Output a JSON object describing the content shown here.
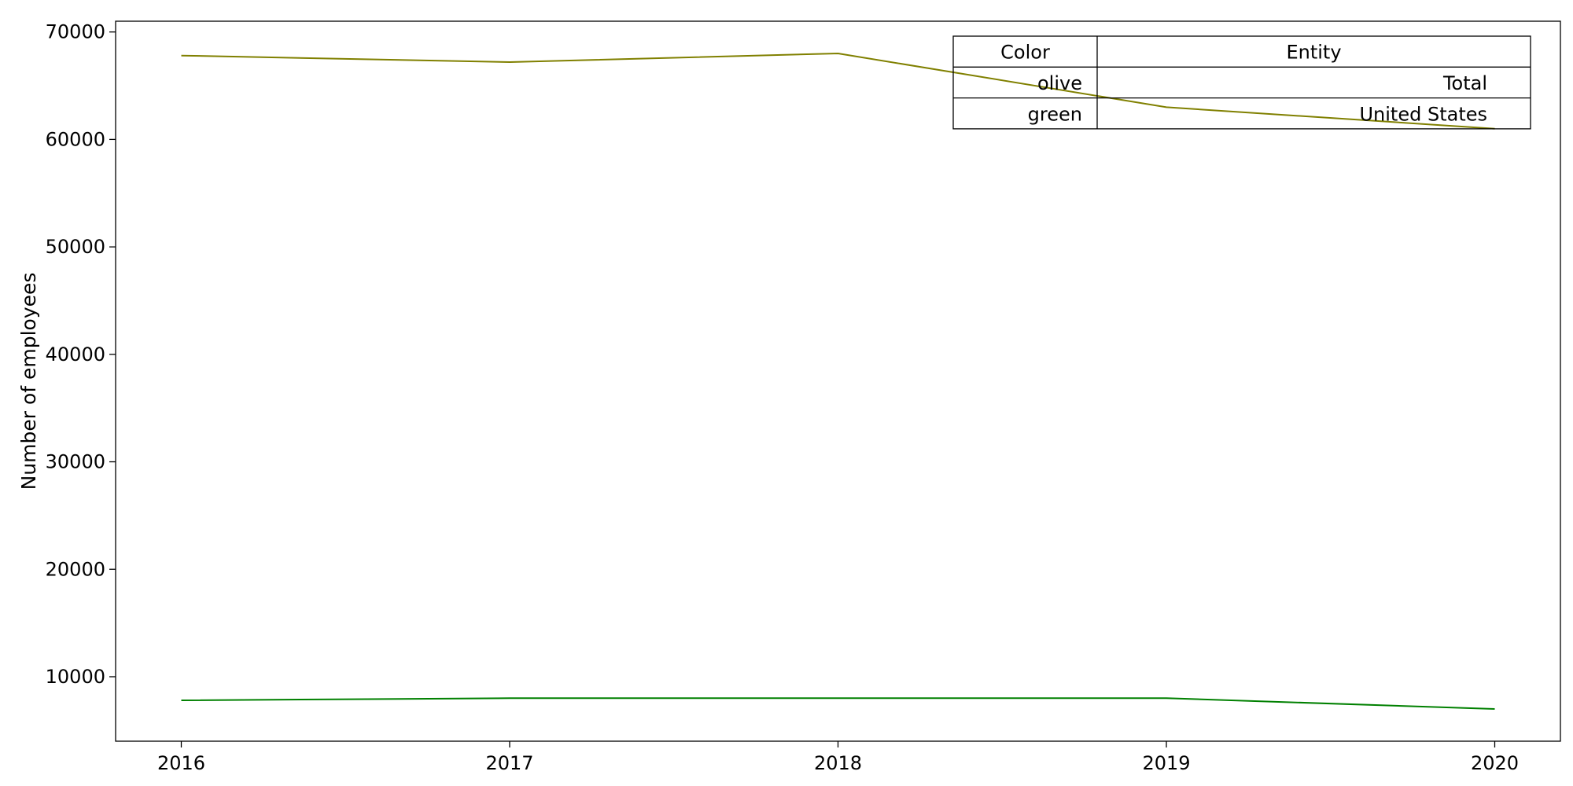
{
  "chart_data": {
    "type": "line",
    "title": "",
    "xlabel": "",
    "ylabel": "Number of employees",
    "x": [
      2016,
      2017,
      2018,
      2019,
      2020
    ],
    "x_tick_labels": [
      "2016",
      "2017",
      "2018",
      "2019",
      "2020"
    ],
    "y_ticks": [
      10000,
      20000,
      30000,
      40000,
      50000,
      60000,
      70000
    ],
    "y_tick_labels": [
      "10000",
      "20000",
      "30000",
      "40000",
      "50000",
      "60000",
      "70000"
    ],
    "xlim": [
      2015.8,
      2020.2
    ],
    "ylim": [
      4000,
      71000
    ],
    "grid": false,
    "legend_placement": "top-right",
    "legend_table": {
      "headers": [
        "Color",
        "Entity"
      ],
      "rows": [
        [
          "olive",
          "Total"
        ],
        [
          "green",
          "United States"
        ]
      ]
    },
    "series": [
      {
        "color": "#808000",
        "values": [
          67800,
          67200,
          68000,
          63000,
          61000
        ]
      },
      {
        "color": "#008000",
        "values": [
          7800,
          8000,
          8000,
          8000,
          7000
        ]
      }
    ]
  }
}
